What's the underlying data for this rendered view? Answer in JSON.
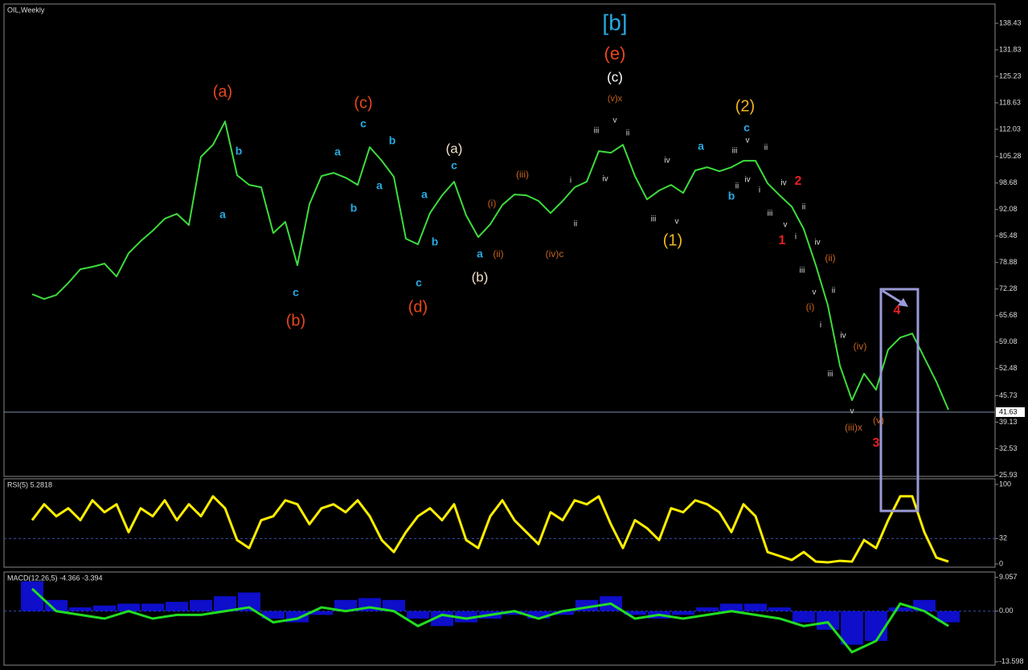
{
  "chart_data": [
    {
      "type": "line",
      "title": "OIL,Weekly",
      "color": "#3ddc3d",
      "values": [
        71.0,
        69.8,
        70.8,
        73.8,
        77.2,
        77.8,
        78.6,
        75.4,
        81.2,
        84.2,
        86.8,
        89.8,
        91.0,
        88.2,
        105.2,
        108.2,
        114.0,
        100.6,
        98.2,
        97.6,
        86.2,
        89.0,
        78.2,
        93.4,
        100.4,
        101.2,
        100.0,
        98.2,
        107.6,
        104.2,
        100.2,
        84.8,
        83.4,
        91.2,
        95.6,
        99.0,
        90.6,
        85.2,
        88.4,
        93.2,
        95.8,
        95.6,
        94.2,
        91.2,
        94.2,
        97.6,
        99.0,
        106.6,
        106.2,
        108.2,
        100.4,
        94.6,
        96.8,
        98.2,
        96.2,
        101.8,
        102.6,
        101.6,
        102.6,
        104.2,
        104.2,
        98.6,
        95.6,
        92.8,
        87.2,
        78.2,
        68.2,
        53.2,
        44.6,
        51.2,
        47.2,
        57.2,
        60.2,
        61.2,
        55.2,
        49.2,
        42.2
      ],
      "ylim": [
        25.63,
        143.23
      ],
      "yticks": [
        138.43,
        131.83,
        125.23,
        118.63,
        112.03,
        105.28,
        98.68,
        92.08,
        85.48,
        78.88,
        72.28,
        65.68,
        59.08,
        52.48,
        45.73,
        39.13,
        32.53,
        25.93
      ],
      "current_price": 41.63,
      "annotations": [
        {
          "text": "[b]",
          "color": "#27a9e1"
        },
        {
          "text": "(e)",
          "color": "#e8461e"
        },
        {
          "text": "(c)",
          "color": "#ffffff"
        },
        {
          "text": "(v)x",
          "color": "#c8641e"
        },
        {
          "text": "(a)",
          "color": "#e8461e"
        },
        {
          "text": "(b)",
          "color": "#e8461e"
        },
        {
          "text": "(c)",
          "color": "#e8461e"
        },
        {
          "text": "(d)",
          "color": "#e8461e"
        },
        {
          "text": "(a)",
          "color": "#f0e0c8"
        },
        {
          "text": "(b)",
          "color": "#f0e0c8"
        },
        {
          "text": "(1)",
          "color": "#f2b61e"
        },
        {
          "text": "(2)",
          "color": "#f2b61e"
        },
        {
          "text": "b",
          "color": "#27a9e1"
        },
        {
          "text": "a",
          "color": "#27a9e1"
        },
        {
          "text": "c",
          "color": "#27a9e1"
        },
        {
          "text": "a",
          "color": "#27a9e1"
        },
        {
          "text": "b",
          "color": "#27a9e1"
        },
        {
          "text": "a",
          "color": "#27a9e1"
        },
        {
          "text": "c",
          "color": "#27a9e1"
        },
        {
          "text": "b",
          "color": "#27a9e1"
        },
        {
          "text": "a",
          "color": "#27a9e1"
        },
        {
          "text": "b",
          "color": "#27a9e1"
        },
        {
          "text": "c",
          "color": "#27a9e1"
        },
        {
          "text": "c",
          "color": "#27a9e1"
        },
        {
          "text": "a",
          "color": "#27a9e1"
        },
        {
          "text": "a",
          "color": "#27a9e1"
        },
        {
          "text": "c",
          "color": "#27a9e1"
        },
        {
          "text": "b",
          "color": "#27a9e1"
        },
        {
          "text": "(i)",
          "color": "#c8641e"
        },
        {
          "text": "(ii)",
          "color": "#c8641e"
        },
        {
          "text": "(iii)",
          "color": "#c8641e"
        },
        {
          "text": "(iv)c",
          "color": "#c8641e"
        },
        {
          "text": "(ii)",
          "color": "#c8641e"
        },
        {
          "text": "(i)",
          "color": "#c8641e"
        },
        {
          "text": "(iv)",
          "color": "#c8641e"
        },
        {
          "text": "(iii)x",
          "color": "#c8641e"
        },
        {
          "text": "(v)",
          "color": "#c8641e"
        },
        {
          "text": "2",
          "color": "#e82020"
        },
        {
          "text": "1",
          "color": "#e82020"
        },
        {
          "text": "4",
          "color": "#e82020"
        },
        {
          "text": "3",
          "color": "#e82020"
        },
        {
          "text": "iii",
          "color": "#dddddd"
        },
        {
          "text": "v",
          "color": "#dddddd"
        },
        {
          "text": "ii",
          "color": "#dddddd"
        },
        {
          "text": "iv",
          "color": "#dddddd"
        },
        {
          "text": "iii",
          "color": "#dddddd"
        },
        {
          "text": "v",
          "color": "#dddddd"
        },
        {
          "text": "iv",
          "color": "#dddddd"
        },
        {
          "text": "i",
          "color": "#dddddd"
        },
        {
          "text": "ii",
          "color": "#dddddd"
        },
        {
          "text": "iii",
          "color": "#dddddd"
        },
        {
          "text": "ii",
          "color": "#dddddd"
        },
        {
          "text": "v",
          "color": "#dddddd"
        },
        {
          "text": "iv",
          "color": "#dddddd"
        },
        {
          "text": "ii",
          "color": "#dddddd"
        },
        {
          "text": "i",
          "color": "#dddddd"
        },
        {
          "text": "iv",
          "color": "#dddddd"
        },
        {
          "text": "iii",
          "color": "#dddddd"
        },
        {
          "text": "v",
          "color": "#dddddd"
        },
        {
          "text": "ii",
          "color": "#dddddd"
        },
        {
          "text": "i",
          "color": "#dddddd"
        },
        {
          "text": "iv",
          "color": "#dddddd"
        },
        {
          "text": "iii",
          "color": "#dddddd"
        },
        {
          "text": "v",
          "color": "#dddddd"
        },
        {
          "text": "ii",
          "color": "#dddddd"
        },
        {
          "text": "i",
          "color": "#dddddd"
        },
        {
          "text": "iv",
          "color": "#dddddd"
        },
        {
          "text": "iii",
          "color": "#dddddd"
        },
        {
          "text": "v",
          "color": "#dddddd"
        }
      ]
    },
    {
      "type": "line",
      "title": "RSI(5) 5.2818",
      "color": "#ffee00",
      "values": [
        55,
        75,
        60,
        70,
        55,
        80,
        65,
        75,
        40,
        70,
        60,
        80,
        55,
        75,
        60,
        85,
        70,
        30,
        20,
        55,
        60,
        80,
        75,
        50,
        70,
        75,
        65,
        80,
        60,
        30,
        15,
        40,
        60,
        70,
        55,
        75,
        30,
        20,
        60,
        80,
        55,
        40,
        25,
        65,
        55,
        80,
        75,
        85,
        50,
        20,
        55,
        45,
        30,
        70,
        65,
        80,
        75,
        65,
        40,
        75,
        60,
        15,
        10,
        5,
        15,
        3,
        2,
        4,
        3,
        30,
        20,
        55,
        85,
        85,
        40,
        8,
        3
      ],
      "ylim": [
        -4,
        107
      ],
      "yticks": [
        100,
        32,
        0
      ]
    },
    {
      "type": "bar",
      "title": "MACD(12,26,5) -4.366 -3.394",
      "series": [
        {
          "color": "#1010ee",
          "values": [
            8,
            3,
            1,
            1.5,
            2,
            2,
            2.5,
            3,
            4,
            5,
            -2,
            -3,
            -1,
            3,
            3.5,
            3,
            -2,
            -4,
            -3,
            -2,
            -1,
            -2,
            -1,
            3,
            4,
            -1,
            -2,
            -1,
            1,
            2,
            2,
            1,
            -3,
            -5,
            -9,
            -8,
            1,
            3,
            -3
          ]
        },
        {
          "color": "#22dd22",
          "values": [
            6,
            0,
            -1,
            -2,
            0,
            -2,
            -1,
            -1,
            0,
            1,
            -3,
            -2,
            1,
            0,
            1,
            0,
            -4,
            -1,
            -2,
            -1,
            0,
            -2,
            0,
            1,
            2,
            -2,
            -1,
            -2,
            -1,
            0,
            -1,
            -2,
            -4,
            -3,
            -11,
            -8,
            2,
            0,
            -4
          ]
        }
      ],
      "ylim": [
        -14.5,
        10.5
      ],
      "yticks": [
        9.057,
        {
          "value": 0,
          "label": "0.00"
        },
        -13.598
      ]
    }
  ]
}
